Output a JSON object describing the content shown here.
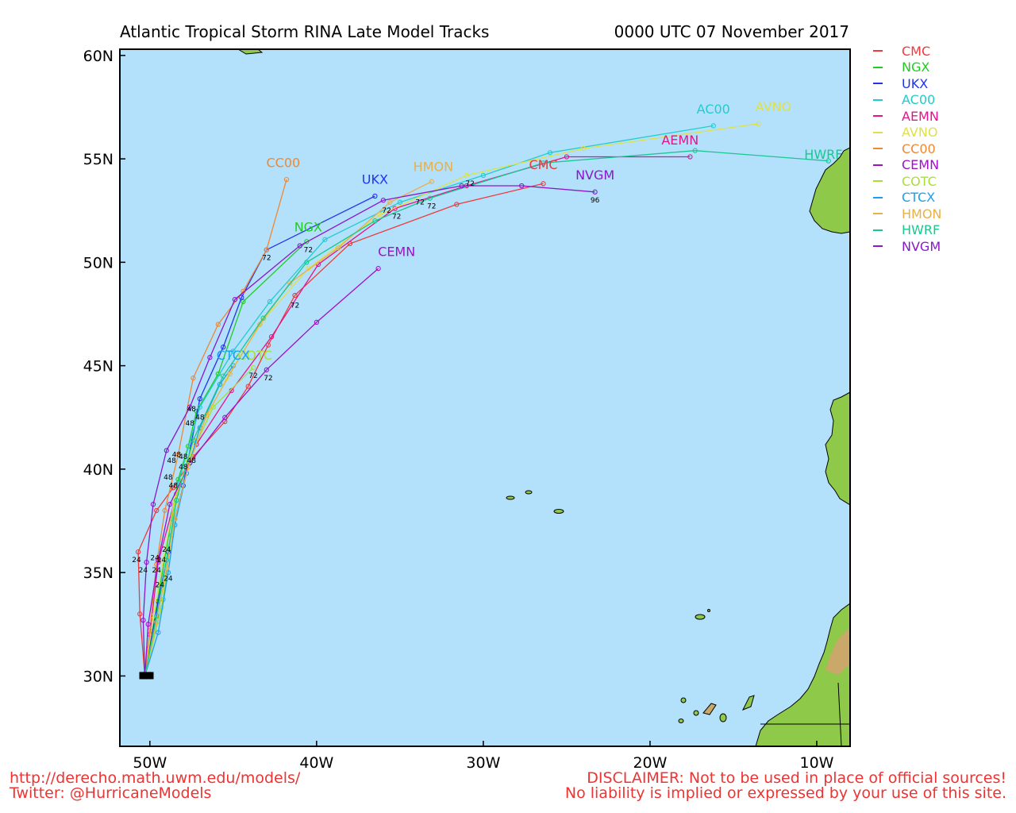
{
  "title": "Atlantic Tropical Storm RINA Late Model Tracks",
  "datetime": "0000 UTC 07 November 2017",
  "axes": {
    "lat_labels": [
      {
        "lat": 60,
        "text": "60N"
      },
      {
        "lat": 55,
        "text": "55N"
      },
      {
        "lat": 50,
        "text": "50N"
      },
      {
        "lat": 45,
        "text": "45N"
      },
      {
        "lat": 40,
        "text": "40N"
      },
      {
        "lat": 35,
        "text": "35N"
      },
      {
        "lat": 30,
        "text": "30N"
      }
    ],
    "lon_labels": [
      {
        "lon": -50,
        "text": "50W"
      },
      {
        "lon": -40,
        "text": "40W"
      },
      {
        "lon": -30,
        "text": "30W"
      },
      {
        "lon": -20,
        "text": "20W"
      },
      {
        "lon": -10,
        "text": "10W"
      }
    ],
    "lon_range": [
      -51.8,
      -8
    ],
    "lat_range": [
      26.6,
      60.3
    ]
  },
  "colors": {
    "ocean": "#b3e0fb",
    "land": "#8fc94a",
    "land_high": "#c9a86a",
    "footer_text": "#ee3333"
  },
  "models": [
    {
      "name": "CMC",
      "color": "#ee3a3a"
    },
    {
      "name": "NGX",
      "color": "#22cc22"
    },
    {
      "name": "UKX",
      "color": "#2233ee"
    },
    {
      "name": "AC00",
      "color": "#22cccc"
    },
    {
      "name": "AEMN",
      "color": "#e6148c"
    },
    {
      "name": "AVNO",
      "color": "#e0e04a"
    },
    {
      "name": "CC00",
      "color": "#ee8833"
    },
    {
      "name": "CEMN",
      "color": "#a010c8"
    },
    {
      "name": "COTC",
      "color": "#a8e030"
    },
    {
      "name": "CTCX",
      "color": "#1aa0ee"
    },
    {
      "name": "HMON",
      "color": "#e8b04a"
    },
    {
      "name": "HWRF",
      "color": "#18c890"
    },
    {
      "name": "NVGM",
      "color": "#8818c8"
    }
  ],
  "chart_data": {
    "type": "map_tracks",
    "storm_start": {
      "lon": -50.3,
      "lat": 30.0
    },
    "tracks": [
      {
        "model": "CMC",
        "points": [
          [
            -50.3,
            30.0
          ],
          [
            -50.6,
            33.0
          ],
          [
            -50.7,
            36.0
          ],
          [
            -49.6,
            38.0
          ],
          [
            -48.6,
            39.1
          ],
          [
            -47.4,
            40.6
          ],
          [
            -45.5,
            42.3
          ],
          [
            -44.1,
            44.0
          ],
          [
            -42.9,
            46.0
          ],
          [
            -41.3,
            48.4
          ],
          [
            -38.0,
            50.9
          ],
          [
            -31.6,
            52.8
          ],
          [
            -26.4,
            53.8
          ]
        ],
        "label": {
          "text": "CMC",
          "lon": -26.4,
          "lat": 54.5
        }
      },
      {
        "model": "NGX",
        "points": [
          [
            -50.3,
            30.0
          ],
          [
            -49.4,
            34.3
          ],
          [
            -48.7,
            37.6
          ],
          [
            -48.3,
            39.5
          ],
          [
            -47.7,
            41.1
          ],
          [
            -47.2,
            42.8
          ],
          [
            -45.9,
            44.6
          ],
          [
            -44.4,
            48.1
          ],
          [
            -40.6,
            51.0
          ]
        ],
        "label": {
          "text": "NGX",
          "lon": -40.5,
          "lat": 51.5
        }
      },
      {
        "model": "UKX",
        "points": [
          [
            -50.3,
            30.0
          ],
          [
            -50.0,
            31.4
          ],
          [
            -49.5,
            33.6
          ],
          [
            -48.9,
            36.0
          ],
          [
            -48.5,
            37.6
          ],
          [
            -48.0,
            39.2
          ],
          [
            -47.0,
            43.4
          ],
          [
            -45.6,
            45.9
          ],
          [
            -44.5,
            48.3
          ],
          [
            -43.0,
            50.6
          ],
          [
            -36.5,
            53.2
          ]
        ],
        "label": {
          "text": "UKX",
          "lon": -36.5,
          "lat": 53.8
        }
      },
      {
        "model": "AC00",
        "points": [
          [
            -50.3,
            30.0
          ],
          [
            -49.2,
            33.7
          ],
          [
            -48.7,
            36.8
          ],
          [
            -48.3,
            39.3
          ],
          [
            -47.0,
            43.0
          ],
          [
            -45.0,
            45.7
          ],
          [
            -42.8,
            48.1
          ],
          [
            -39.5,
            51.1
          ],
          [
            -35.0,
            52.9
          ],
          [
            -30.0,
            54.2
          ],
          [
            -26.0,
            55.3
          ],
          [
            -16.2,
            56.6
          ]
        ],
        "label": {
          "text": "AC00",
          "lon": -16.2,
          "lat": 57.2
        }
      },
      {
        "model": "AEMN",
        "points": [
          [
            -50.3,
            30.0
          ],
          [
            -50.0,
            32.0
          ],
          [
            -49.5,
            35.5
          ],
          [
            -48.4,
            38.8
          ],
          [
            -47.2,
            41.2
          ],
          [
            -45.1,
            43.8
          ],
          [
            -42.7,
            46.4
          ],
          [
            -39.9,
            49.9
          ],
          [
            -35.3,
            52.6
          ],
          [
            -31.0,
            53.7
          ],
          [
            -25.0,
            55.1
          ],
          [
            -17.6,
            55.1
          ]
        ],
        "label": {
          "text": "AEMN",
          "lon": -18.2,
          "lat": 55.7
        }
      },
      {
        "model": "AVNO",
        "points": [
          [
            -50.3,
            30.0
          ],
          [
            -49.8,
            32.9
          ],
          [
            -49.2,
            35.6
          ],
          [
            -48.5,
            38.6
          ],
          [
            -47.3,
            41.4
          ],
          [
            -45.4,
            44.4
          ],
          [
            -43.2,
            47.2
          ],
          [
            -40.5,
            49.7
          ],
          [
            -36.2,
            52.3
          ],
          [
            -31.0,
            54.2
          ],
          [
            -24.0,
            55.5
          ],
          [
            -13.5,
            56.7
          ]
        ],
        "label": {
          "text": "AVNO",
          "lon": -12.6,
          "lat": 57.3
        }
      },
      {
        "model": "CC00",
        "points": [
          [
            -50.3,
            30.0
          ],
          [
            -50.0,
            32.2
          ],
          [
            -49.6,
            35.4
          ],
          [
            -49.1,
            38.0
          ],
          [
            -48.3,
            40.7
          ],
          [
            -47.4,
            44.4
          ],
          [
            -45.9,
            47.0
          ],
          [
            -44.4,
            48.6
          ],
          [
            -43.0,
            50.6
          ],
          [
            -41.8,
            54.0
          ]
        ],
        "label": {
          "text": "CC00",
          "lon": -42.0,
          "lat": 54.6
        }
      },
      {
        "model": "CEMN",
        "points": [
          [
            -50.3,
            30.0
          ],
          [
            -50.1,
            32.5
          ],
          [
            -49.5,
            35.6
          ],
          [
            -48.8,
            38.3
          ],
          [
            -47.6,
            40.3
          ],
          [
            -45.5,
            42.5
          ],
          [
            -43.0,
            44.8
          ],
          [
            -40.0,
            47.1
          ],
          [
            -36.3,
            49.7
          ]
        ],
        "label": {
          "text": "CEMN",
          "lon": -35.2,
          "lat": 50.3
        }
      },
      {
        "model": "COTC",
        "points": [
          [
            -50.3,
            30.0
          ],
          [
            -49.3,
            33.3
          ],
          [
            -48.8,
            36.2
          ],
          [
            -48.5,
            38.4
          ],
          [
            -47.7,
            40.4
          ],
          [
            -46.2,
            43.0
          ],
          [
            -43.8,
            44.9
          ]
        ],
        "label": {
          "text": "COTC",
          "lon": -43.7,
          "lat": 45.3
        }
      },
      {
        "model": "CTCX",
        "points": [
          [
            -50.3,
            30.0
          ],
          [
            -49.5,
            32.1
          ],
          [
            -48.9,
            35.0
          ],
          [
            -48.5,
            37.3
          ],
          [
            -47.8,
            39.8
          ],
          [
            -47.0,
            42.0
          ],
          [
            -45.8,
            44.1
          ],
          [
            -45.0,
            45.0
          ]
        ],
        "label": {
          "text": "CTCX",
          "lon": -45.0,
          "lat": 45.3
        }
      },
      {
        "model": "HMON",
        "points": [
          [
            -50.3,
            30.0
          ],
          [
            -49.6,
            32.6
          ],
          [
            -49.0,
            35.2
          ],
          [
            -48.5,
            37.6
          ],
          [
            -47.7,
            40.1
          ],
          [
            -46.6,
            42.6
          ],
          [
            -45.2,
            44.6
          ],
          [
            -43.4,
            47.0
          ],
          [
            -41.6,
            49.0
          ],
          [
            -38.7,
            50.7
          ],
          [
            -35.6,
            52.9
          ],
          [
            -33.1,
            53.9
          ]
        ],
        "label": {
          "text": "HMON",
          "lon": -33.0,
          "lat": 54.4
        }
      },
      {
        "model": "HWRF",
        "points": [
          [
            -50.3,
            30.0
          ],
          [
            -49.6,
            32.9
          ],
          [
            -49.0,
            35.6
          ],
          [
            -48.4,
            38.5
          ],
          [
            -47.4,
            41.4
          ],
          [
            -45.6,
            44.5
          ],
          [
            -43.2,
            47.3
          ],
          [
            -40.6,
            50.0
          ],
          [
            -36.5,
            52.0
          ],
          [
            -33.2,
            53.1
          ],
          [
            -26.4,
            54.8
          ],
          [
            -17.3,
            55.4
          ],
          [
            -9.3,
            54.9
          ]
        ],
        "label": {
          "text": "HWRF",
          "lon": -9.6,
          "lat": 55.0
        }
      },
      {
        "model": "NVGM",
        "points": [
          [
            -50.3,
            30.0
          ],
          [
            -50.4,
            32.7
          ],
          [
            -50.2,
            35.5
          ],
          [
            -49.8,
            38.3
          ],
          [
            -49.0,
            40.9
          ],
          [
            -47.6,
            43.0
          ],
          [
            -46.4,
            45.4
          ],
          [
            -44.9,
            48.2
          ],
          [
            -41.0,
            50.8
          ],
          [
            -36.0,
            53.0
          ],
          [
            -31.3,
            53.7
          ],
          [
            -27.7,
            53.7
          ],
          [
            -23.3,
            53.4
          ]
        ],
        "label": {
          "text": "NVGM",
          "lon": -23.3,
          "lat": 54.0
        }
      }
    ],
    "hour_labels": [
      {
        "text": "24",
        "lon": -50.8,
        "lat": 35.5
      },
      {
        "text": "24",
        "lon": -50.4,
        "lat": 35.0
      },
      {
        "text": "24",
        "lon": -49.7,
        "lat": 35.6
      },
      {
        "text": "24",
        "lon": -49.3,
        "lat": 35.5
      },
      {
        "text": "24",
        "lon": -49.0,
        "lat": 36.0
      },
      {
        "text": "24",
        "lon": -49.6,
        "lat": 35.0
      },
      {
        "text": "24",
        "lon": -49.4,
        "lat": 34.3
      },
      {
        "text": "24",
        "lon": -48.9,
        "lat": 34.6
      },
      {
        "text": "48",
        "lon": -48.9,
        "lat": 39.5
      },
      {
        "text": "48",
        "lon": -48.6,
        "lat": 39.1
      },
      {
        "text": "48",
        "lon": -48.7,
        "lat": 40.3
      },
      {
        "text": "48",
        "lon": -48.4,
        "lat": 40.6
      },
      {
        "text": "48",
        "lon": -47.5,
        "lat": 40.3
      },
      {
        "text": "48",
        "lon": -48.0,
        "lat": 40.5
      },
      {
        "text": "48",
        "lon": -47.0,
        "lat": 42.4
      },
      {
        "text": "48",
        "lon": -47.6,
        "lat": 42.1
      },
      {
        "text": "48",
        "lon": -47.5,
        "lat": 42.8
      },
      {
        "text": "48",
        "lon": -48.0,
        "lat": 40.0
      },
      {
        "text": "72",
        "lon": -43.0,
        "lat": 50.1
      },
      {
        "text": "72",
        "lon": -40.5,
        "lat": 50.5
      },
      {
        "text": "72",
        "lon": -41.3,
        "lat": 47.8
      },
      {
        "text": "72",
        "lon": -43.8,
        "lat": 44.4
      },
      {
        "text": "72",
        "lon": -42.9,
        "lat": 44.3
      },
      {
        "text": "72",
        "lon": -35.8,
        "lat": 52.4
      },
      {
        "text": "72",
        "lon": -35.2,
        "lat": 52.1
      },
      {
        "text": "72",
        "lon": -33.8,
        "lat": 52.8
      },
      {
        "text": "72",
        "lon": -33.1,
        "lat": 52.6
      },
      {
        "text": "72",
        "lon": -30.8,
        "lat": 53.7
      },
      {
        "text": "96",
        "lon": -23.3,
        "lat": 52.9
      }
    ]
  },
  "footer": {
    "url": "http://derecho.math.uwm.edu/models/",
    "twitter": "Twitter: @HurricaneModels",
    "disclaimer1": "DISCLAIMER: Not to be used in place of official sources!",
    "disclaimer2": "No liability is implied or expressed by your use of this site."
  }
}
